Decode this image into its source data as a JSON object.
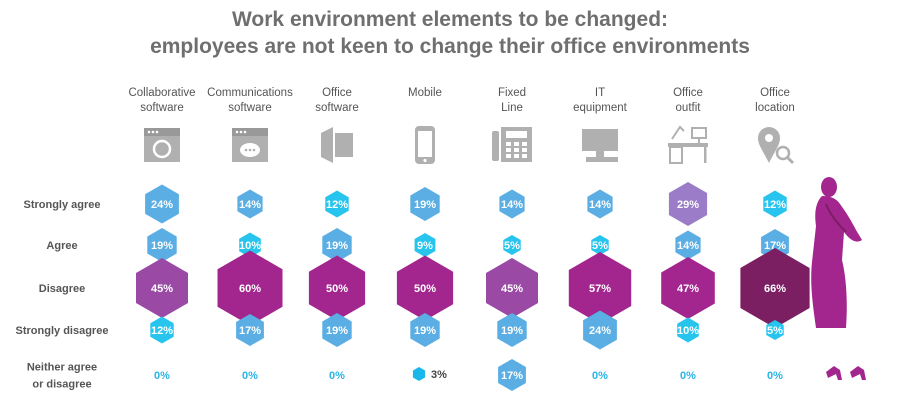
{
  "title": {
    "line1": "Work environment elements to be changed:",
    "line2": "employees are not keen to change their office environments"
  },
  "colors": {
    "strongly_agree": "#5aaee3",
    "agree": "#5aaee3",
    "disagree": "#a3268f",
    "strongly_disagree": "#5aaee3",
    "neither": "#1ab8ea",
    "small": "#27c4ee",
    "dark": "#7b1e62",
    "purple_light": "#9b7cc9",
    "icon": "#b0b0b0",
    "label": "#555555",
    "zero": "#2ab4e6",
    "figure": "#a3268f"
  },
  "chart_data": {
    "type": "table",
    "title": "Work environment elements to be changed: employees are not keen to change their office environments",
    "categories": [
      {
        "name_lines": [
          "Collaborative",
          "software"
        ],
        "icon": "collaborative-software-icon"
      },
      {
        "name_lines": [
          "Communications",
          "software"
        ],
        "icon": "communications-software-icon"
      },
      {
        "name_lines": [
          "Office",
          "software"
        ],
        "icon": "office-software-icon"
      },
      {
        "name_lines": [
          "Mobile"
        ],
        "icon": "mobile-icon"
      },
      {
        "name_lines": [
          "Fixed",
          "Line"
        ],
        "icon": "fixed-line-phone-icon"
      },
      {
        "name_lines": [
          "IT",
          "equipment"
        ],
        "icon": "it-equipment-icon"
      },
      {
        "name_lines": [
          "Office",
          "outfit"
        ],
        "icon": "office-outfit-icon"
      },
      {
        "name_lines": [
          "Office",
          "location"
        ],
        "icon": "office-location-icon"
      }
    ],
    "rows": [
      {
        "key": "strongly_agree",
        "label_lines": [
          "Strongly agree"
        ]
      },
      {
        "key": "agree",
        "label_lines": [
          "Agree"
        ]
      },
      {
        "key": "disagree",
        "label_lines": [
          "Disagree"
        ]
      },
      {
        "key": "strongly_disagree",
        "label_lines": [
          "Strongly disagree"
        ]
      },
      {
        "key": "neither",
        "label_lines": [
          "Neither agree",
          "or disagree"
        ]
      }
    ],
    "series": [
      {
        "name": "Strongly agree",
        "values": [
          24,
          14,
          12,
          19,
          14,
          14,
          29,
          12
        ]
      },
      {
        "name": "Agree",
        "values": [
          19,
          10,
          19,
          9,
          5,
          5,
          14,
          17
        ]
      },
      {
        "name": "Disagree",
        "values": [
          45,
          60,
          50,
          50,
          45,
          57,
          47,
          66
        ]
      },
      {
        "name": "Strongly disagree",
        "values": [
          12,
          17,
          19,
          19,
          19,
          24,
          10,
          5
        ]
      },
      {
        "name": "Neither agree or disagree",
        "values": [
          0,
          0,
          0,
          3,
          17,
          0,
          0,
          0
        ]
      }
    ],
    "unit": "%"
  }
}
